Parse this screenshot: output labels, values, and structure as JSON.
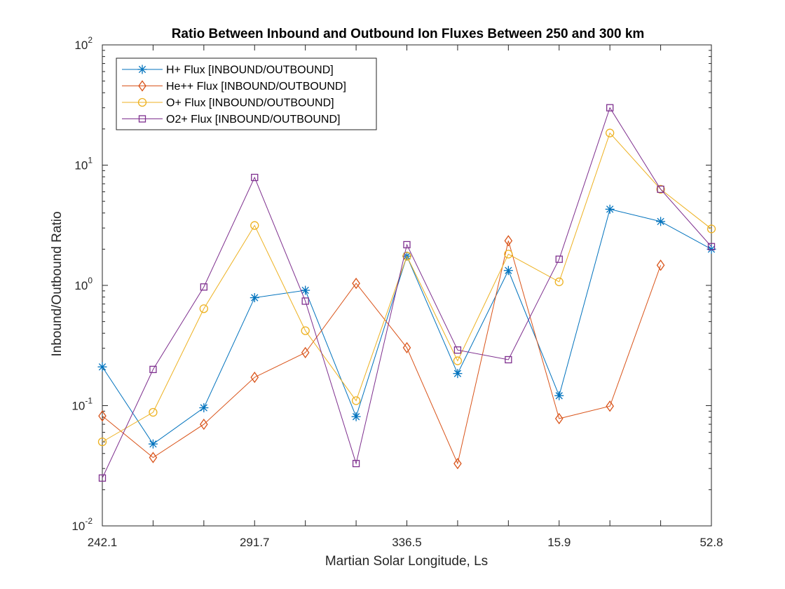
{
  "chart_data": {
    "type": "line",
    "title": "Ratio Between Inbound and Outbound Ion Fluxes Between 250 and 300 km",
    "xlabel": "Martian Solar Longitude, Ls",
    "ylabel": "Inbound/Outbound Ratio",
    "yscale": "log",
    "ylim": [
      0.01,
      100
    ],
    "y_tick_labels": [
      {
        "base": "10",
        "exp": "-2"
      },
      {
        "base": "10",
        "exp": "-1"
      },
      {
        "base": "10",
        "exp": "0"
      },
      {
        "base": "10",
        "exp": "1"
      },
      {
        "base": "10",
        "exp": "2"
      }
    ],
    "x_tick_labels": [
      "242.1",
      "291.7",
      "336.5",
      "15.9",
      "52.8"
    ],
    "x_tick_label_indices": [
      0,
      3,
      6,
      9,
      12
    ],
    "point_count": 13,
    "grid": false,
    "legend_position": "top-left",
    "series": [
      {
        "name": "H+ Flux [INBOUND/OUTBOUND]",
        "color": "#0072BD",
        "marker": "asterisk",
        "values": [
          0.21,
          0.048,
          0.096,
          0.79,
          0.91,
          0.081,
          1.75,
          0.185,
          1.33,
          0.121,
          4.3,
          3.4,
          2.0
        ]
      },
      {
        "name": "He++ Flux [INBOUND/OUTBOUND]",
        "color": "#D95319",
        "marker": "diamond",
        "values": [
          0.082,
          0.037,
          0.07,
          0.172,
          0.276,
          1.04,
          0.303,
          0.033,
          2.35,
          0.078,
          0.099,
          1.47,
          null
        ]
      },
      {
        "name": "O+ Flux [INBOUND/OUTBOUND]",
        "color": "#EDB120",
        "marker": "circle",
        "values": [
          0.05,
          0.088,
          0.64,
          3.15,
          0.42,
          0.11,
          1.75,
          0.236,
          1.82,
          1.07,
          18.5,
          6.3,
          2.95
        ]
      },
      {
        "name": "O2+ Flux [INBOUND/OUTBOUND]",
        "color": "#7E2F8E",
        "marker": "square",
        "values": [
          0.025,
          0.2,
          0.97,
          7.9,
          0.74,
          0.033,
          2.18,
          0.29,
          0.241,
          1.65,
          30.0,
          6.3,
          2.1
        ]
      }
    ]
  }
}
